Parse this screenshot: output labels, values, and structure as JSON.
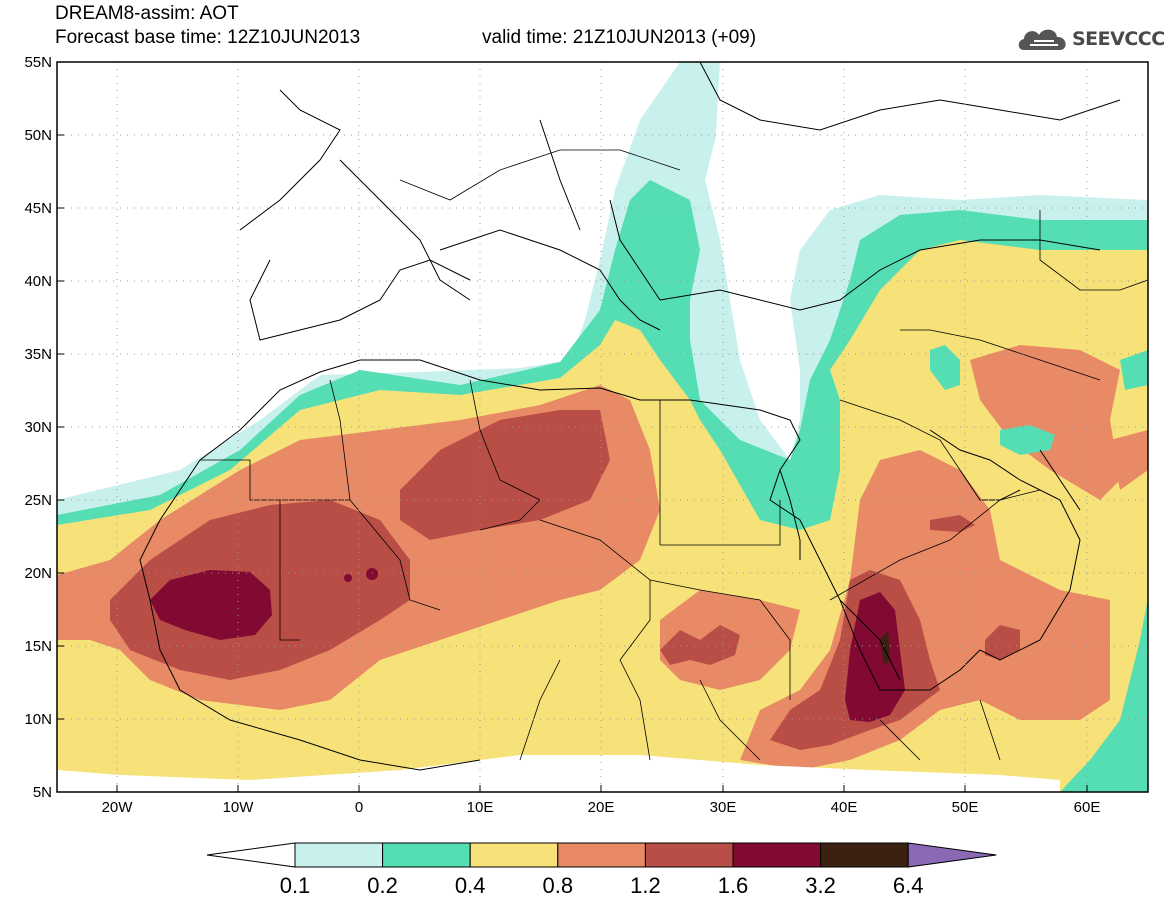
{
  "header": {
    "title": "DREAM8-assim: AOT",
    "base_time": "Forecast base time: 12Z10JUN2013",
    "valid_time": "valid time: 21Z10JUN2013 (+09)"
  },
  "logo": {
    "text": "SEEVCCC",
    "icon": "cloud-icon"
  },
  "map": {
    "lat_labels": [
      "55N",
      "50N",
      "45N",
      "40N",
      "35N",
      "30N",
      "25N",
      "20N",
      "15N",
      "10N",
      "5N"
    ],
    "lon_labels": [
      "20W",
      "10W",
      "0",
      "10E",
      "20E",
      "30E",
      "40E",
      "50E",
      "60E"
    ],
    "extent": {
      "lon": [
        -25,
        65
      ],
      "lat": [
        5,
        55
      ]
    }
  },
  "legend": {
    "labels": [
      "0.1",
      "0.2",
      "0.4",
      "0.8",
      "1.2",
      "1.6",
      "3.2",
      "6.4"
    ],
    "colors": [
      "#ffffff",
      "#c8f0ec",
      "#55deb4",
      "#f7e27a",
      "#e98a66",
      "#b94e46",
      "#820a32",
      "#3c2112",
      "#8a6ab4"
    ]
  }
}
